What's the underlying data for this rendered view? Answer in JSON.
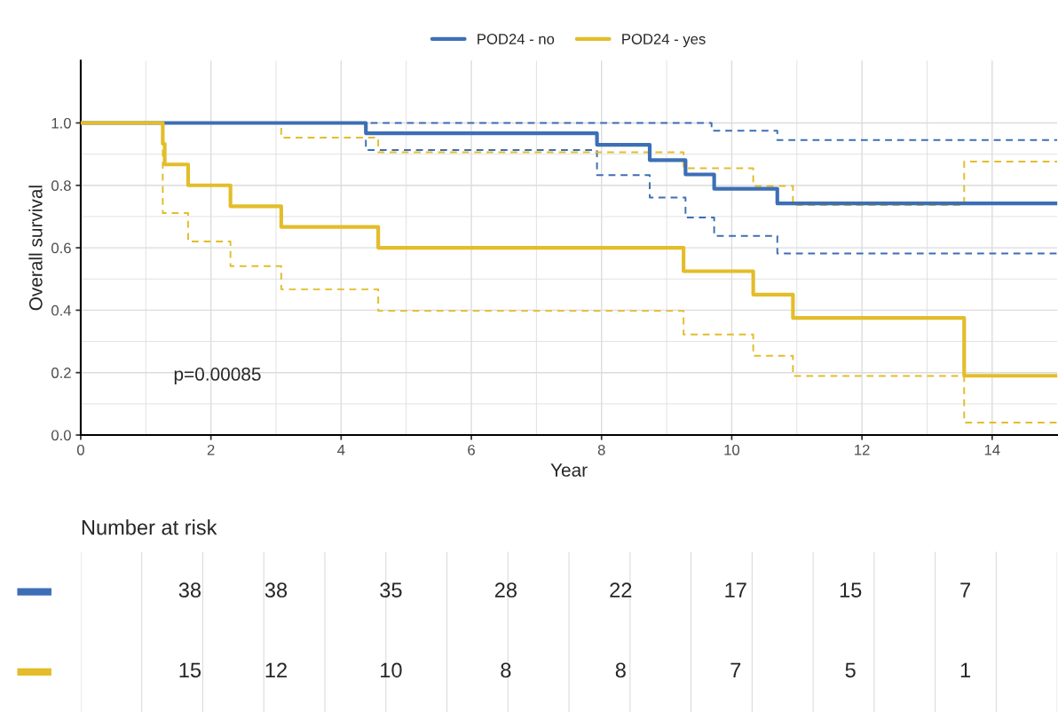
{
  "chart_data": [
    {
      "type": "step",
      "xlabel": "Year",
      "ylabel": "Overall survival",
      "xlim": [
        0,
        15
      ],
      "ylim": [
        0,
        1.2
      ],
      "xticks": [
        0,
        2,
        4,
        6,
        8,
        10,
        12,
        14
      ],
      "yticks": [
        {
          "value": 0,
          "label": "0.0"
        },
        {
          "value": 0.2,
          "label": "0.2"
        },
        {
          "value": 0.4,
          "label": "0.4"
        },
        {
          "value": 0.6,
          "label": "0.6"
        },
        {
          "value": 0.8,
          "label": "0.8"
        },
        {
          "value": 1.0,
          "label": "1.0"
        }
      ],
      "grid": true,
      "legend": "top",
      "annotations": [
        "p=0.00085"
      ],
      "series": [
        {
          "color": "#3c6fb6",
          "line_style": "dashed",
          "x": [
            0,
            9.69,
            10.7,
            15
          ],
          "values": [
            1.0,
            0.975,
            0.945,
            0.945
          ]
        },
        {
          "color": "#3c6fb6",
          "line_style": "dashed",
          "x": [
            0,
            4.38,
            7.93,
            8.74,
            9.29,
            9.73,
            10.7,
            15
          ],
          "values": [
            1.0,
            0.913,
            0.833,
            0.761,
            0.697,
            0.638,
            0.582,
            0.582
          ]
        },
        {
          "color": "#e3bd2a",
          "line_style": "dashed",
          "x": [
            0,
            3.08,
            4.57,
            9.26,
            10.33,
            10.94,
            13.57,
            15
          ],
          "values": [
            1.0,
            0.953,
            0.906,
            0.855,
            0.798,
            0.737,
            0.876,
            0.876
          ]
        },
        {
          "color": "#e3bd2a",
          "line_style": "dashed",
          "x": [
            0,
            1.26,
            1.65,
            2.3,
            3.08,
            4.57,
            9.26,
            10.33,
            10.94,
            13.57,
            15
          ],
          "values": [
            1.0,
            0.711,
            0.62,
            0.541,
            0.467,
            0.398,
            0.322,
            0.254,
            0.189,
            0.04,
            0.04
          ]
        },
        {
          "name": "POD24 - no",
          "color": "#3c6fb6",
          "line_style": "solid",
          "x": [
            0,
            4.38,
            7.93,
            8.74,
            9.29,
            9.73,
            10.7,
            15
          ],
          "values": [
            1.0,
            0.967,
            0.93,
            0.881,
            0.835,
            0.789,
            0.742,
            0.742
          ]
        },
        {
          "name": "POD24 - yes",
          "color": "#e3bd2a",
          "line_style": "solid",
          "x": [
            0,
            1.26,
            1.29,
            1.65,
            2.3,
            3.08,
            4.57,
            9.26,
            10.33,
            10.94,
            13.57,
            15
          ],
          "values": [
            1.0,
            0.933,
            0.867,
            0.8,
            0.733,
            0.667,
            0.6,
            0.525,
            0.45,
            0.375,
            0.19,
            0.19
          ]
        }
      ]
    },
    {
      "type": "other",
      "title": "Number at risk",
      "annotations": [
        "38",
        "38",
        "35",
        "28",
        "22",
        "17",
        "15",
        "7",
        "15",
        "12",
        "10",
        "8",
        "8",
        "7",
        "5",
        "1"
      ]
    }
  ]
}
